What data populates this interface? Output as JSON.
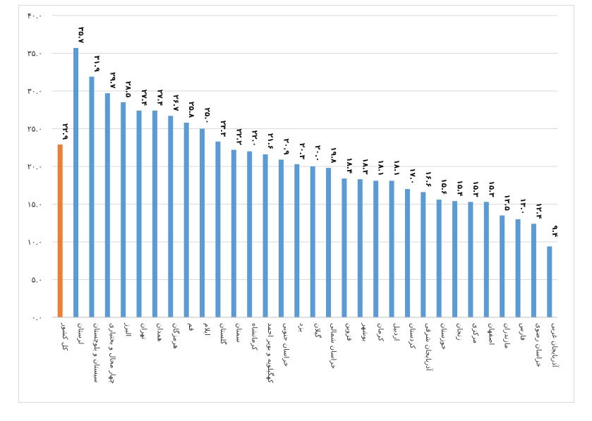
{
  "chart_data": {
    "type": "bar",
    "title": "",
    "xlabel": "",
    "ylabel": "",
    "ylim": [
      0,
      40
    ],
    "grid": true,
    "legend": "none",
    "yticks": [
      0,
      5,
      10,
      15,
      20,
      25,
      30,
      35,
      40
    ],
    "ytick_labels": [
      "۰.۰",
      "۵.۰",
      "۱۰.۰",
      "۱۵.۰",
      "۲۰.۰",
      "۲۵.۰",
      "۳۰.۰",
      "۳۵.۰",
      "۴۰.۰"
    ],
    "categories": [
      "کل کشور",
      "لرستان",
      "سیستان و بلوچستان",
      "چهار محال و بختیاری",
      "البرز",
      "تهران",
      "همدان",
      "هرمزگان",
      "قم",
      "ایلام",
      "گلستان",
      "سمنان",
      "کرمانشاه",
      "کهگیلویه و بویر احمد",
      "خراسان جنوبی",
      "یزد",
      "گیلان",
      "خراسان شمالی",
      "قزوین",
      "بوشهر",
      "کرمان",
      "اردبیل",
      "کردستان",
      "آذربایجان شرقی",
      "خوزستان",
      "زنجان",
      "مرکزی",
      "اصفهان",
      "مازندران",
      "فارس",
      "خراسان رضوی",
      "آذربایجان غربی"
    ],
    "values": [
      22.9,
      35.7,
      31.9,
      29.7,
      28.5,
      27.4,
      27.4,
      26.7,
      25.8,
      25.0,
      23.3,
      22.2,
      22.0,
      21.6,
      20.9,
      20.3,
      20.0,
      19.8,
      18.4,
      18.3,
      18.1,
      18.1,
      17.0,
      16.6,
      15.6,
      15.4,
      15.3,
      15.3,
      13.5,
      13.0,
      12.4,
      9.4
    ],
    "value_labels": [
      "۲۲.۹",
      "۳۵.۷",
      "۳۱.۹",
      "۲۹.۷",
      "۲۸.۵",
      "۲۷.۴",
      "۲۷.۴",
      "۲۶.۷",
      "۲۵.۸",
      "۲۵.۰",
      "۲۳.۳",
      "۲۲.۲",
      "۲۲.۰",
      "۲۱.۶",
      "۲۰.۹",
      "۲۰.۳",
      "۲۰.۰",
      "۱۹.۸",
      "۱۸.۴",
      "۱۸.۳",
      "۱۸.۱",
      "۱۸.۱",
      "۱۷.۰",
      "۱۶.۶",
      "۱۵.۶",
      "۱۵.۴",
      "۱۵.۳",
      "۱۵.۳",
      "۱۳.۵",
      "۱۳.۰",
      "۱۲.۴",
      "۹.۴"
    ],
    "colors": {
      "highlight": "#ED7D31",
      "bar": "#5B9BD5",
      "grid": "#D9D9D9",
      "axis": "#BFBFBF"
    }
  }
}
